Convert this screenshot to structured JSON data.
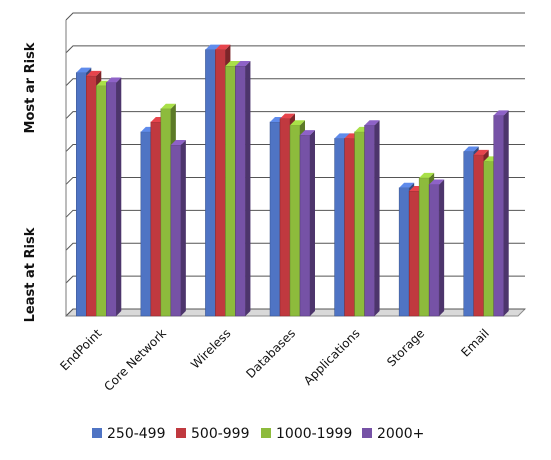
{
  "chart_data": {
    "type": "bar",
    "title": "",
    "xlabel": "",
    "ylabel_top": "Most ar Risk",
    "ylabel_bottom": "Least at Risk",
    "ylim": [
      0,
      9
    ],
    "grid": true,
    "legend_position": "bottom",
    "categories": [
      "EndPoint",
      "Core Network",
      "Wireless",
      "Databases",
      "Applications",
      "Storage",
      "Email"
    ],
    "series": [
      {
        "name": "250-499",
        "color": "#4f74c4",
        "values": [
          7.4,
          5.6,
          8.1,
          5.9,
          5.4,
          3.9,
          5.0
        ]
      },
      {
        "name": "500-999",
        "color": "#c0393f",
        "values": [
          7.3,
          5.9,
          8.1,
          6.0,
          5.4,
          3.8,
          4.9
        ]
      },
      {
        "name": "1000-1999",
        "color": "#8dbb3c",
        "values": [
          7.0,
          6.3,
          7.6,
          5.8,
          5.6,
          4.2,
          4.7
        ]
      },
      {
        "name": "2000+",
        "color": "#7652a6",
        "values": [
          7.1,
          5.2,
          7.6,
          5.5,
          5.8,
          4.0,
          6.1
        ]
      }
    ]
  }
}
